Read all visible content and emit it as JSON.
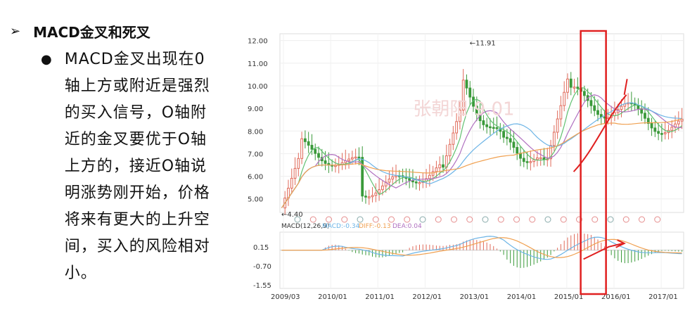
{
  "slide": {
    "heading": "MACD金叉和死叉",
    "bullet_lines": [
      "MACD金叉出现在0",
      "轴上方或附近是强烈",
      "的买入信号，O轴附",
      "近的金叉要优于O轴",
      "上方的，接近O轴说",
      "明涨势刚开始，价格",
      "将来有更大的上升空",
      "间，买入的风险相对",
      "小。"
    ]
  },
  "chart_data": {
    "type": "candlestick",
    "price_panel": {
      "y_ticks": [
        "12.00",
        "11.00",
        "10.00",
        "9.00",
        "8.00",
        "7.00",
        "6.00",
        "5.00"
      ],
      "ylim": [
        4.4,
        12.3
      ],
      "annotations": [
        {
          "label": "←11.91",
          "value": 11.91
        },
        {
          "label": "←4.40",
          "value": 4.4
        }
      ],
      "watermark": "张朝阳 9.01"
    },
    "macd_panel": {
      "legend": [
        "MACD(12,26,9)",
        "MACD:-0.34",
        "DIFF:-0.13",
        "DEA:0.04"
      ],
      "y_ticks": [
        "0.15",
        "-0.70",
        "-1.55"
      ],
      "ylim": [
        -1.7,
        0.8
      ]
    },
    "x_ticks": [
      "2009/03",
      "2010/01",
      "2011/01",
      "2012/01",
      "2013/01",
      "2014/01",
      "2015/01",
      "2016/01",
      "2017/01"
    ],
    "colors": {
      "up": "#e06a5a",
      "down": "#3a9a3a",
      "ma_blue": "#6cb4e6",
      "ma_purple": "#b070c0",
      "ma_orange": "#f0a050",
      "ma_green": "#60c070",
      "highlight": "#e02020"
    }
  }
}
